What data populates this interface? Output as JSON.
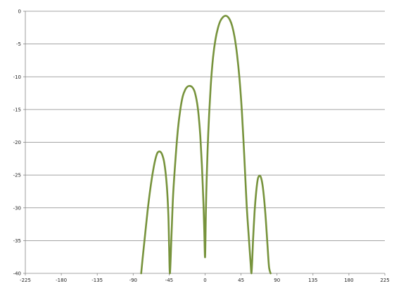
{
  "chart_data": {
    "type": "line",
    "title": "",
    "xlabel": "",
    "ylabel": "",
    "xlim": [
      -225,
      225
    ],
    "ylim": [
      -40,
      0
    ],
    "x_ticks": [
      -225,
      -180,
      -135,
      -90,
      -45,
      0,
      45,
      90,
      135,
      180,
      225
    ],
    "y_ticks": [
      0,
      -5,
      -10,
      -15,
      -20,
      -25,
      -30,
      -35,
      -40
    ],
    "grid": "horizontal",
    "legend": "none",
    "colors": {
      "line": "#77933C",
      "grid": "#868686",
      "axis": "#868686",
      "text": "#222222"
    },
    "series": [
      {
        "x": [
          -80,
          -78,
          -75,
          -72,
          -69,
          -66,
          -63,
          -60,
          -57,
          -54,
          -51,
          -48,
          -46,
          -45,
          -44,
          -42,
          -40,
          -37,
          -34,
          -31,
          -28,
          -25,
          -22,
          -19,
          -16,
          -13,
          -10,
          -8,
          -6,
          -4,
          -2,
          -1,
          0,
          1,
          2,
          4,
          7,
          10,
          13,
          16,
          19,
          22,
          25,
          28,
          31,
          34,
          37,
          40,
          43,
          46,
          49,
          52,
          55,
          57,
          58,
          59,
          60,
          62,
          64,
          66,
          68,
          70,
          72,
          74,
          76,
          78,
          80,
          82
        ],
        "y": [
          -40,
          -37.5,
          -34,
          -30.5,
          -27.5,
          -25,
          -23,
          -21.7,
          -21.4,
          -21.8,
          -23.2,
          -26.5,
          -31,
          -36,
          -40,
          -34,
          -28,
          -22.5,
          -18,
          -15,
          -13,
          -12,
          -11.5,
          -11.4,
          -11.6,
          -12.3,
          -14,
          -16,
          -19,
          -23.5,
          -29.5,
          -33.5,
          -37.5,
          -30.5,
          -25.5,
          -18.5,
          -11.5,
          -7,
          -4.3,
          -2.6,
          -1.5,
          -0.95,
          -0.7,
          -0.8,
          -1.3,
          -2.3,
          -4,
          -6.6,
          -10.2,
          -15.2,
          -22,
          -29.5,
          -35,
          -38.5,
          -40,
          -38,
          -35,
          -30.5,
          -27.5,
          -25.6,
          -25.1,
          -25.4,
          -26.6,
          -28.8,
          -31.8,
          -35.5,
          -39,
          -40
        ]
      }
    ]
  }
}
